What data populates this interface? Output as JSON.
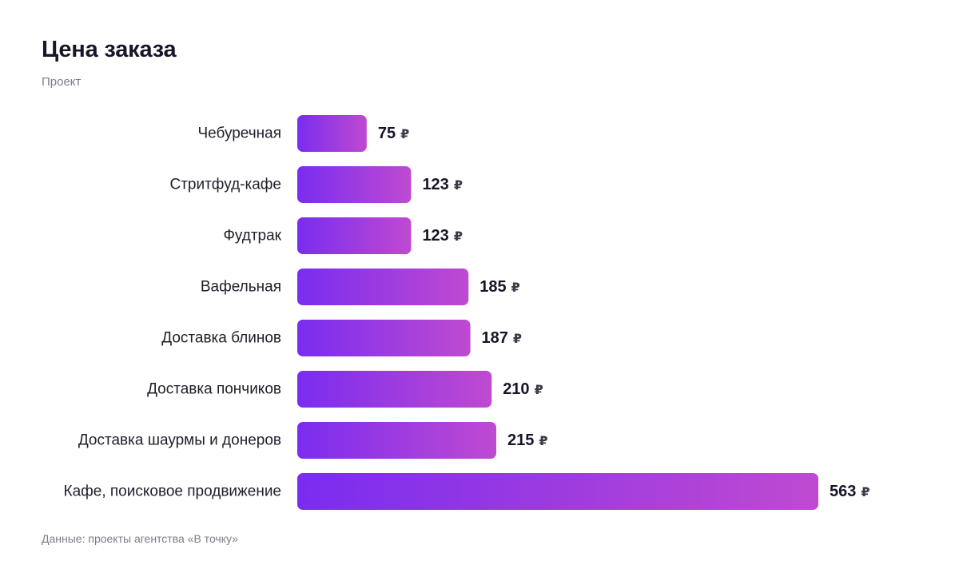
{
  "chart_data": {
    "type": "bar",
    "orientation": "horizontal",
    "title": "Цена заказа",
    "subtitle": "Проект",
    "categories": [
      "Чебуречная",
      "Стритфуд-кафе",
      "Фудтрак",
      "Вафельная",
      "Доставка блинов",
      "Доставка пончиков",
      "Доставка шаурмы и донеров",
      "Кафе, поисковое продвижение"
    ],
    "values": [
      75,
      123,
      123,
      185,
      187,
      210,
      215,
      563
    ],
    "unit": "₽",
    "xlim": [
      0,
      563
    ],
    "grid": false,
    "legend": "none",
    "colors": {
      "bar_start": "#7a2cf0",
      "bar_end": "#bf4ad1"
    },
    "source": "Данные: проекты агентства «В точку»"
  }
}
